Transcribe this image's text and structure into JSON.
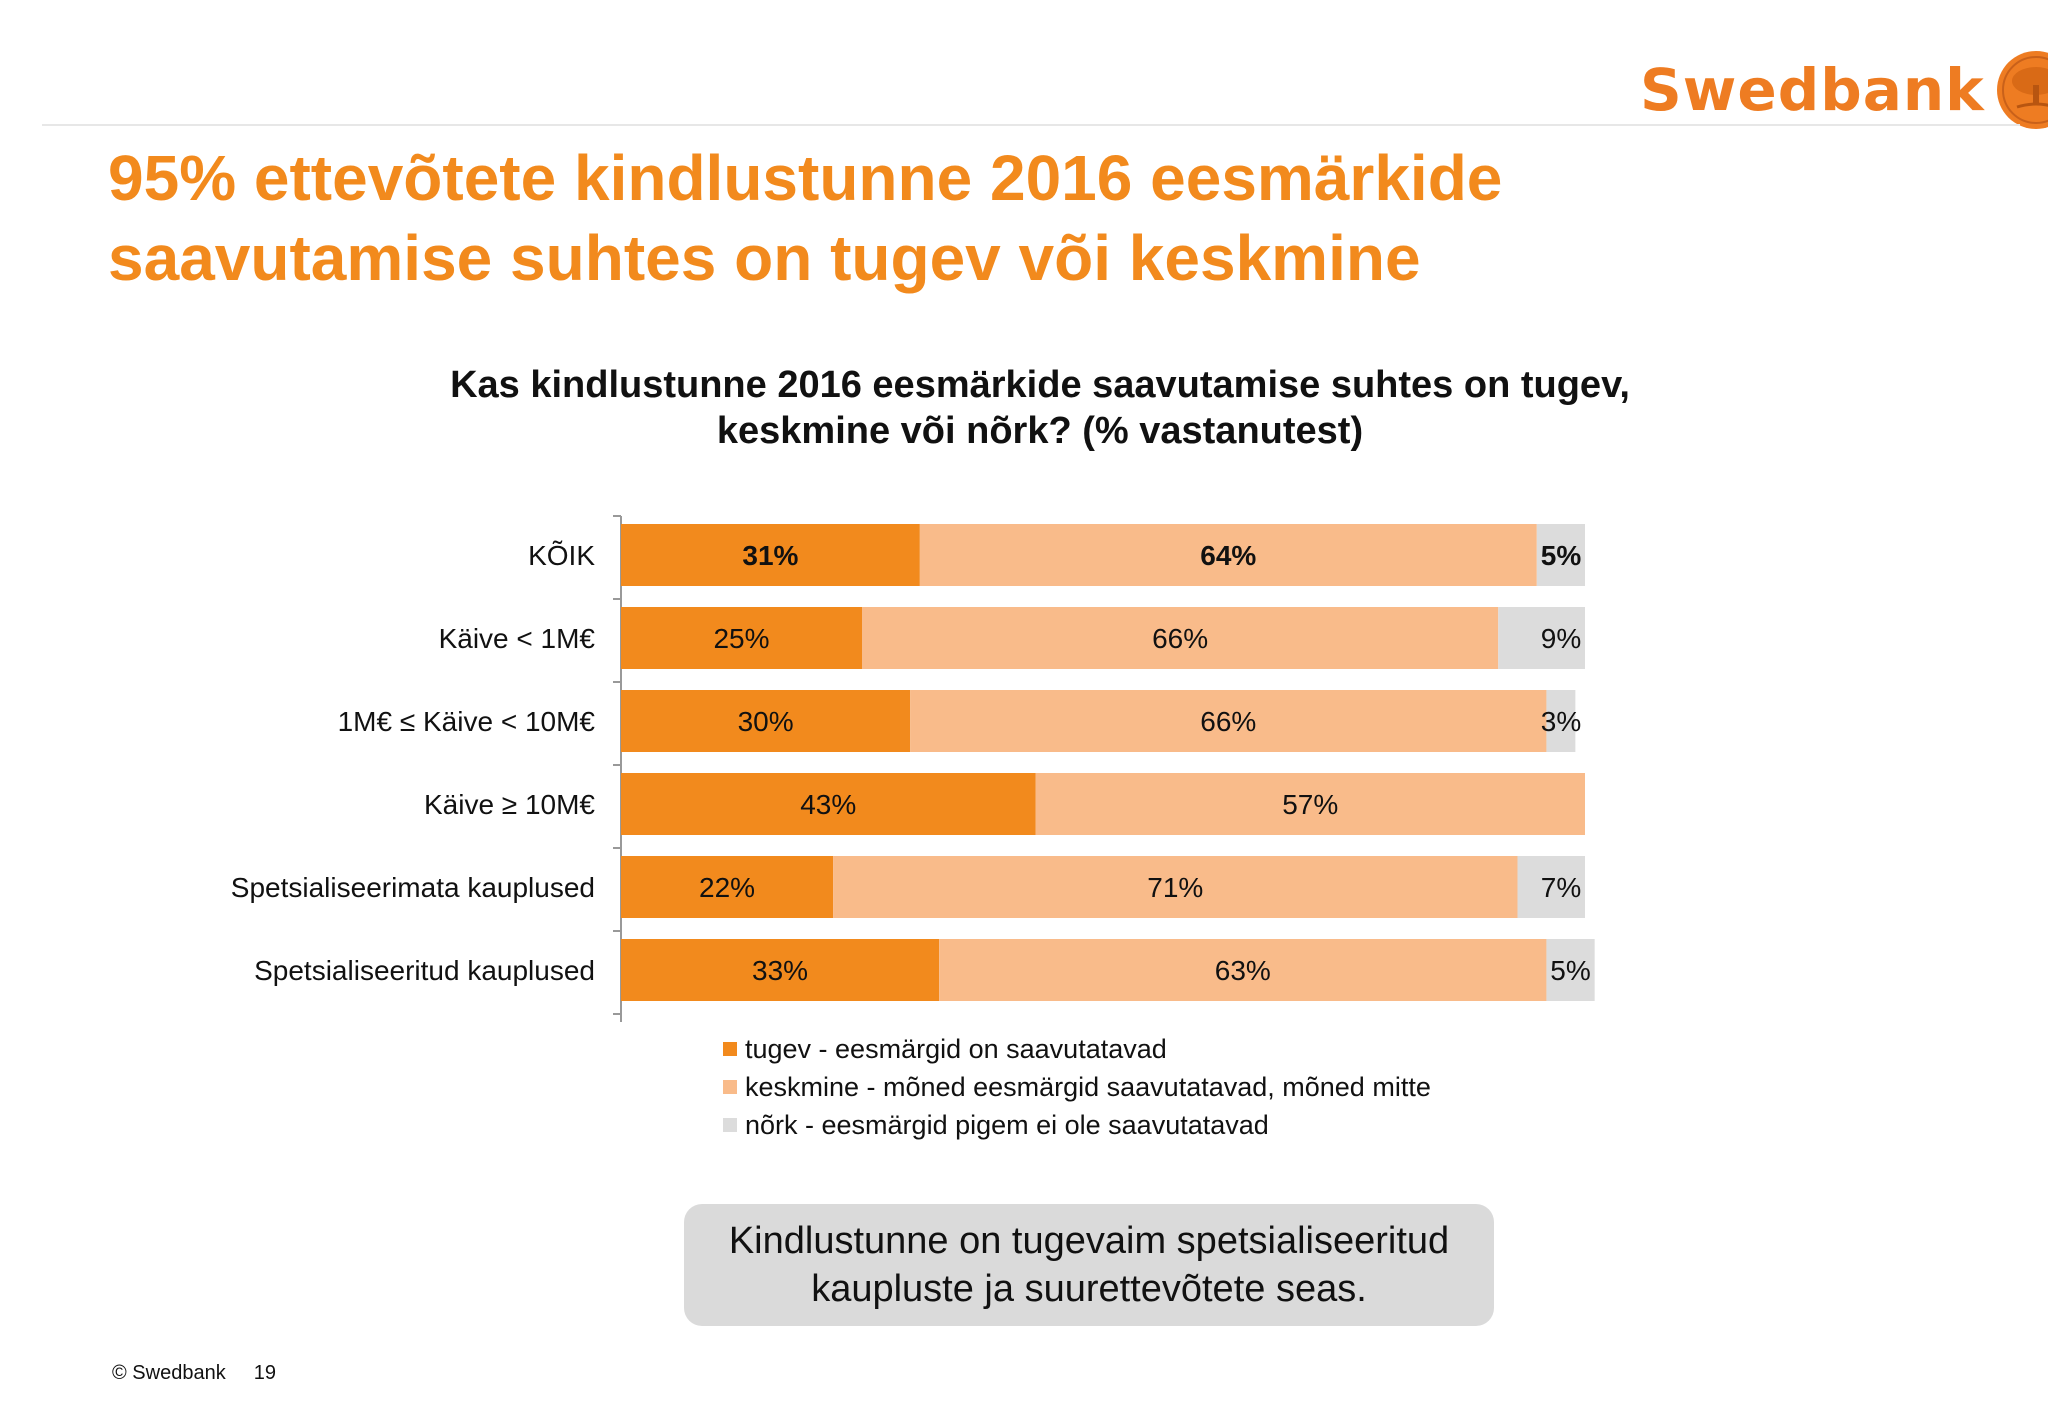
{
  "brand": {
    "name": "Swedbank",
    "logo_icon": "oak-tree-seal-icon",
    "color": "#ee7c22"
  },
  "headline": "95% ettevõtete kindlustunne 2016 eesmärkide saavutamise suhtes on tugev või keskmine",
  "callout": "Kindlustunne on tugevaim spetsialiseeritud kaupluste ja suurettevõtete seas.",
  "footer": {
    "copyright": "© Swedbank",
    "page": "19"
  },
  "chart_data": {
    "type": "bar",
    "orientation": "horizontal",
    "stacked": true,
    "title": "Kas kindlustunne 2016 eesmärkide saavutamise suhtes on tugev, keskmine või nõrk? (% vastanutest)",
    "categories": [
      "KÕIK",
      "Käive < 1M€",
      "1M€ ≤ Käive < 10M€",
      "Käive ≥ 10M€",
      "Spetsialiseerimata kauplused",
      "Spetsialiseeritud kauplused"
    ],
    "series": [
      {
        "name": "tugev - eesmärgid on saavutatavad",
        "color": "#f28a1d",
        "values": [
          31,
          25,
          30,
          43,
          22,
          33
        ]
      },
      {
        "name": "keskmine - mõned eesmärgid saavutatavad, mõned mitte",
        "color": "#f9bb8a",
        "values": [
          64,
          66,
          66,
          57,
          71,
          63
        ]
      },
      {
        "name": "nõrk - eesmärgid pigem ei ole saavutatavad",
        "color": "#dcdcdc",
        "values": [
          5,
          9,
          3,
          0,
          7,
          5
        ]
      }
    ],
    "value_labels": [
      [
        "31%",
        "64%",
        "5%"
      ],
      [
        "25%",
        "66%",
        "9%"
      ],
      [
        "30%",
        "66%",
        "3%"
      ],
      [
        "43%",
        "57%",
        ""
      ],
      [
        "22%",
        "71%",
        "7%"
      ],
      [
        "33%",
        "63%",
        "5%"
      ]
    ],
    "bold_rows": [
      0
    ],
    "xlim": [
      0,
      100
    ],
    "legend_position": "bottom",
    "grid": false
  }
}
